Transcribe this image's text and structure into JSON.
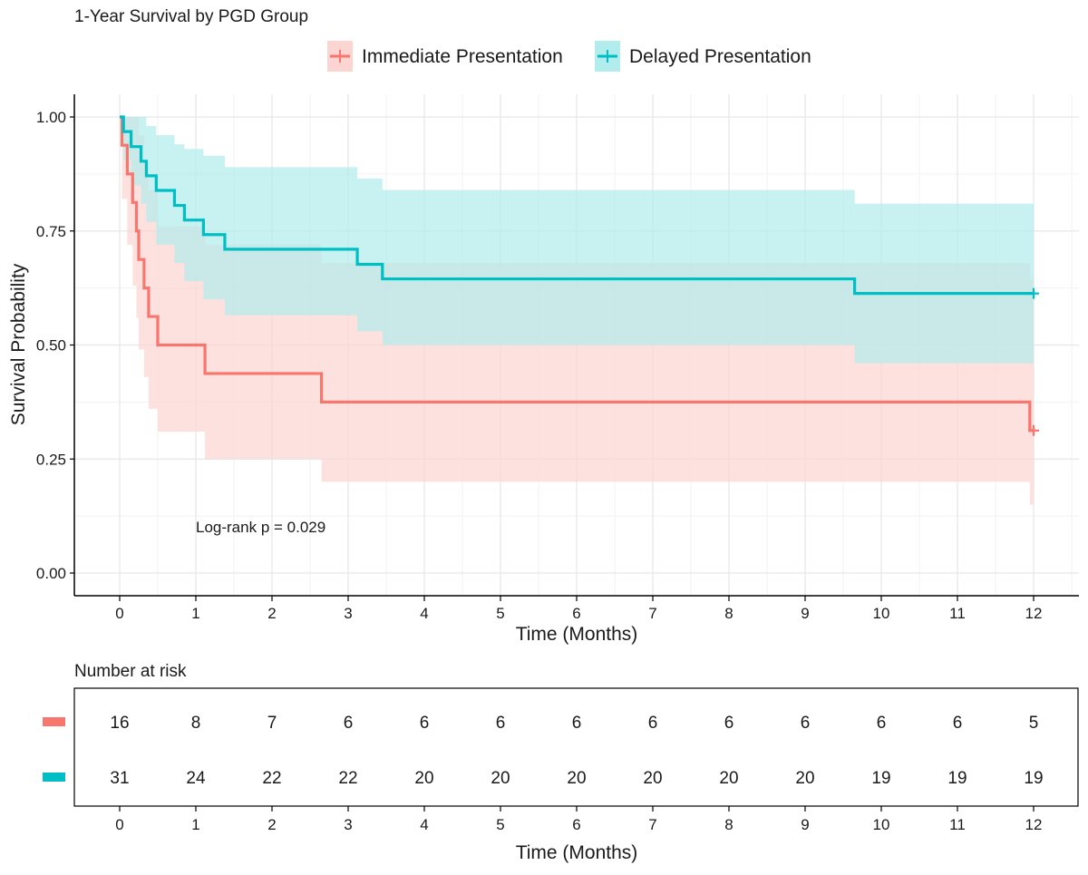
{
  "chart_data": {
    "type": "line",
    "subtype": "kaplan-meier",
    "title": "1-Year Survival by PGD Group",
    "xlabel": "Time (Months)",
    "ylabel": "Survival Probability",
    "xlim": [
      0,
      12
    ],
    "ylim": [
      0,
      1
    ],
    "x_ticks": [
      0,
      1,
      2,
      3,
      4,
      5,
      6,
      7,
      8,
      9,
      10,
      11,
      12
    ],
    "y_ticks": [
      0,
      0.25,
      0.5,
      0.75,
      1
    ],
    "y_tick_labels": [
      "0.00",
      "0.25",
      "0.50",
      "0.75",
      "1.00"
    ],
    "grid": true,
    "legend_position": "top",
    "annotation": "Log-rank p = 0.029",
    "series": [
      {
        "name": "Immediate Presentation",
        "color": "#F8766D",
        "fill_color": "#FCD5D3",
        "steps": [
          {
            "t": 0,
            "s": 1.0,
            "lo": 1.0,
            "hi": 1.0
          },
          {
            "t": 0.03,
            "s": 0.938,
            "lo": 0.82,
            "hi": 1.0
          },
          {
            "t": 0.1,
            "s": 0.875,
            "lo": 0.72,
            "hi": 1.0
          },
          {
            "t": 0.17,
            "s": 0.8125,
            "lo": 0.63,
            "hi": 1.0
          },
          {
            "t": 0.22,
            "s": 0.75,
            "lo": 0.56,
            "hi": 1.0
          },
          {
            "t": 0.25,
            "s": 0.6875,
            "lo": 0.49,
            "hi": 0.96
          },
          {
            "t": 0.32,
            "s": 0.625,
            "lo": 0.43,
            "hi": 0.9
          },
          {
            "t": 0.38,
            "s": 0.5625,
            "lo": 0.36,
            "hi": 0.84
          },
          {
            "t": 0.5,
            "s": 0.5,
            "lo": 0.31,
            "hi": 0.76
          },
          {
            "t": 1.12,
            "s": 0.4375,
            "lo": 0.25,
            "hi": 0.72
          },
          {
            "t": 2.65,
            "s": 0.375,
            "lo": 0.2,
            "hi": 0.68
          },
          {
            "t": 11.95,
            "s": 0.3125,
            "lo": 0.15,
            "hi": 0.645
          }
        ],
        "end_time": 12,
        "censor_marks": [
          12
        ]
      },
      {
        "name": "Delayed Presentation",
        "color": "#00BFC4",
        "fill_color": "#B3ECEC",
        "steps": [
          {
            "t": 0,
            "s": 1.0,
            "lo": 1.0,
            "hi": 1.0
          },
          {
            "t": 0.05,
            "s": 0.968,
            "lo": 0.905,
            "hi": 1.0
          },
          {
            "t": 0.15,
            "s": 0.935,
            "lo": 0.85,
            "hi": 1.0
          },
          {
            "t": 0.28,
            "s": 0.903,
            "lo": 0.81,
            "hi": 1.0
          },
          {
            "t": 0.35,
            "s": 0.871,
            "lo": 0.77,
            "hi": 0.98
          },
          {
            "t": 0.48,
            "s": 0.839,
            "lo": 0.72,
            "hi": 0.96
          },
          {
            "t": 0.72,
            "s": 0.806,
            "lo": 0.68,
            "hi": 0.94
          },
          {
            "t": 0.85,
            "s": 0.774,
            "lo": 0.64,
            "hi": 0.93
          },
          {
            "t": 1.1,
            "s": 0.742,
            "lo": 0.6,
            "hi": 0.915
          },
          {
            "t": 1.38,
            "s": 0.71,
            "lo": 0.565,
            "hi": 0.89
          },
          {
            "t": 3.12,
            "s": 0.677,
            "lo": 0.53,
            "hi": 0.865
          },
          {
            "t": 3.45,
            "s": 0.645,
            "lo": 0.5,
            "hi": 0.84
          },
          {
            "t": 9.65,
            "s": 0.613,
            "lo": 0.46,
            "hi": 0.81
          }
        ],
        "end_time": 12,
        "censor_marks": [
          12
        ]
      }
    ],
    "risk_table": {
      "title": "Number at risk",
      "xlabel": "Time (Months)",
      "times": [
        0,
        1,
        2,
        3,
        4,
        5,
        6,
        7,
        8,
        9,
        10,
        11,
        12
      ],
      "rows": [
        {
          "name": "Immediate Presentation",
          "color": "#F8766D",
          "counts": [
            16,
            8,
            7,
            6,
            6,
            6,
            6,
            6,
            6,
            6,
            6,
            6,
            5
          ]
        },
        {
          "name": "Delayed Presentation",
          "color": "#00BFC4",
          "counts": [
            31,
            24,
            22,
            22,
            20,
            20,
            20,
            20,
            20,
            20,
            19,
            19,
            19
          ]
        }
      ]
    }
  }
}
